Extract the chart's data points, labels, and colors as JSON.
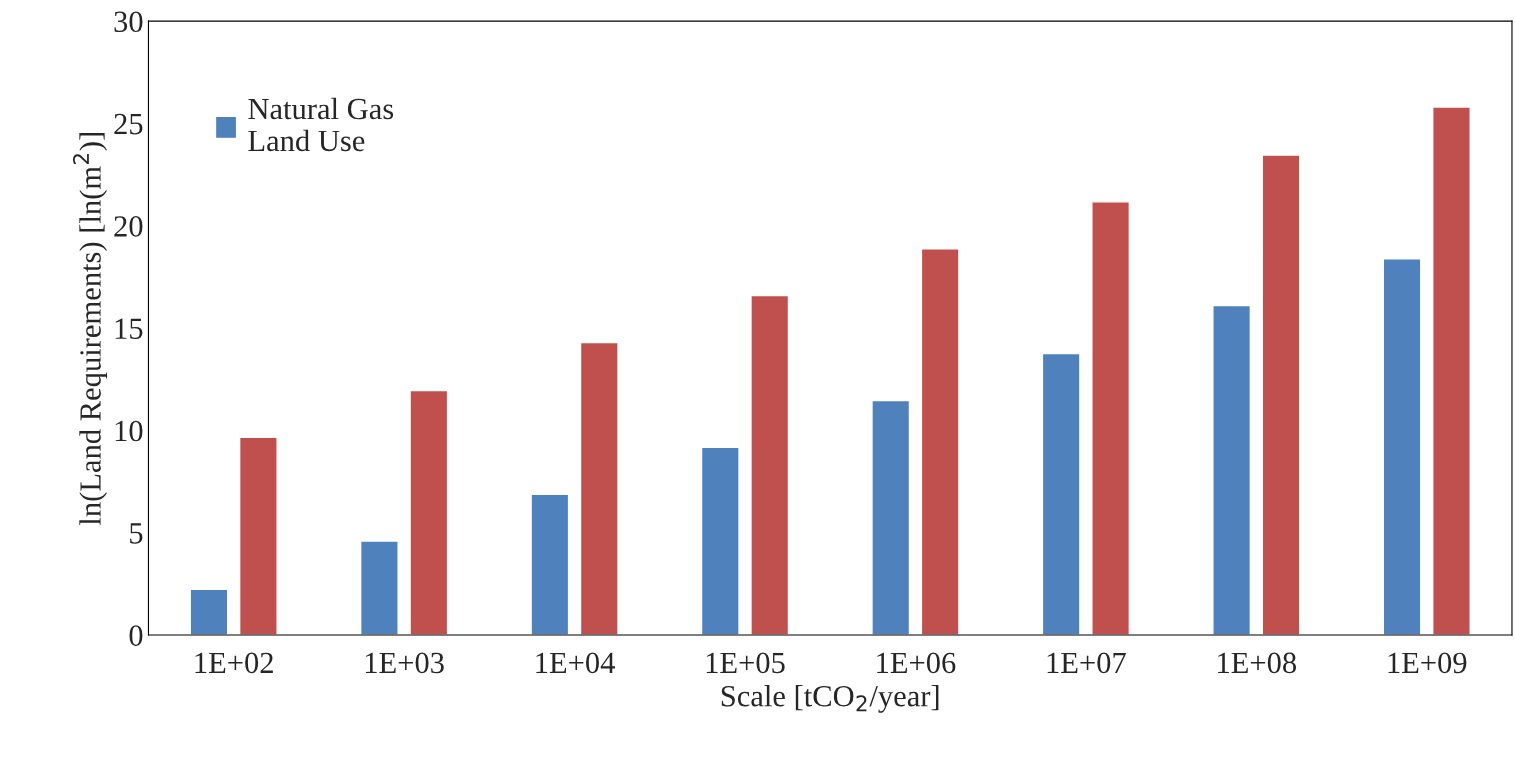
{
  "chart_data": {
    "type": "bar",
    "xlabel": "Scale [tCO$_{2}$/year]",
    "ylabel": "ln(Land Requirements) [ln(m$^{2}$)]",
    "categories": [
      "1E+02",
      "1E+03",
      "1E+04",
      "1E+05",
      "1E+06",
      "1E+07",
      "1E+08",
      "1E+09"
    ],
    "series": [
      {
        "name": "Natural Gas\nLand Use",
        "color": "#4f81bd",
        "values": [
          2.24,
          4.59,
          6.88,
          9.17,
          11.46,
          13.76,
          16.1,
          18.39
        ]
      },
      {
        "color": "#c0504d",
        "values": [
          9.66,
          11.95,
          14.29,
          16.59,
          18.88,
          21.17,
          23.46,
          25.8
        ]
      }
    ],
    "ylim": [
      0,
      30
    ],
    "yticks": [
      0,
      5,
      10,
      15,
      20,
      25,
      30
    ],
    "grid": false,
    "legend": "top left"
  }
}
